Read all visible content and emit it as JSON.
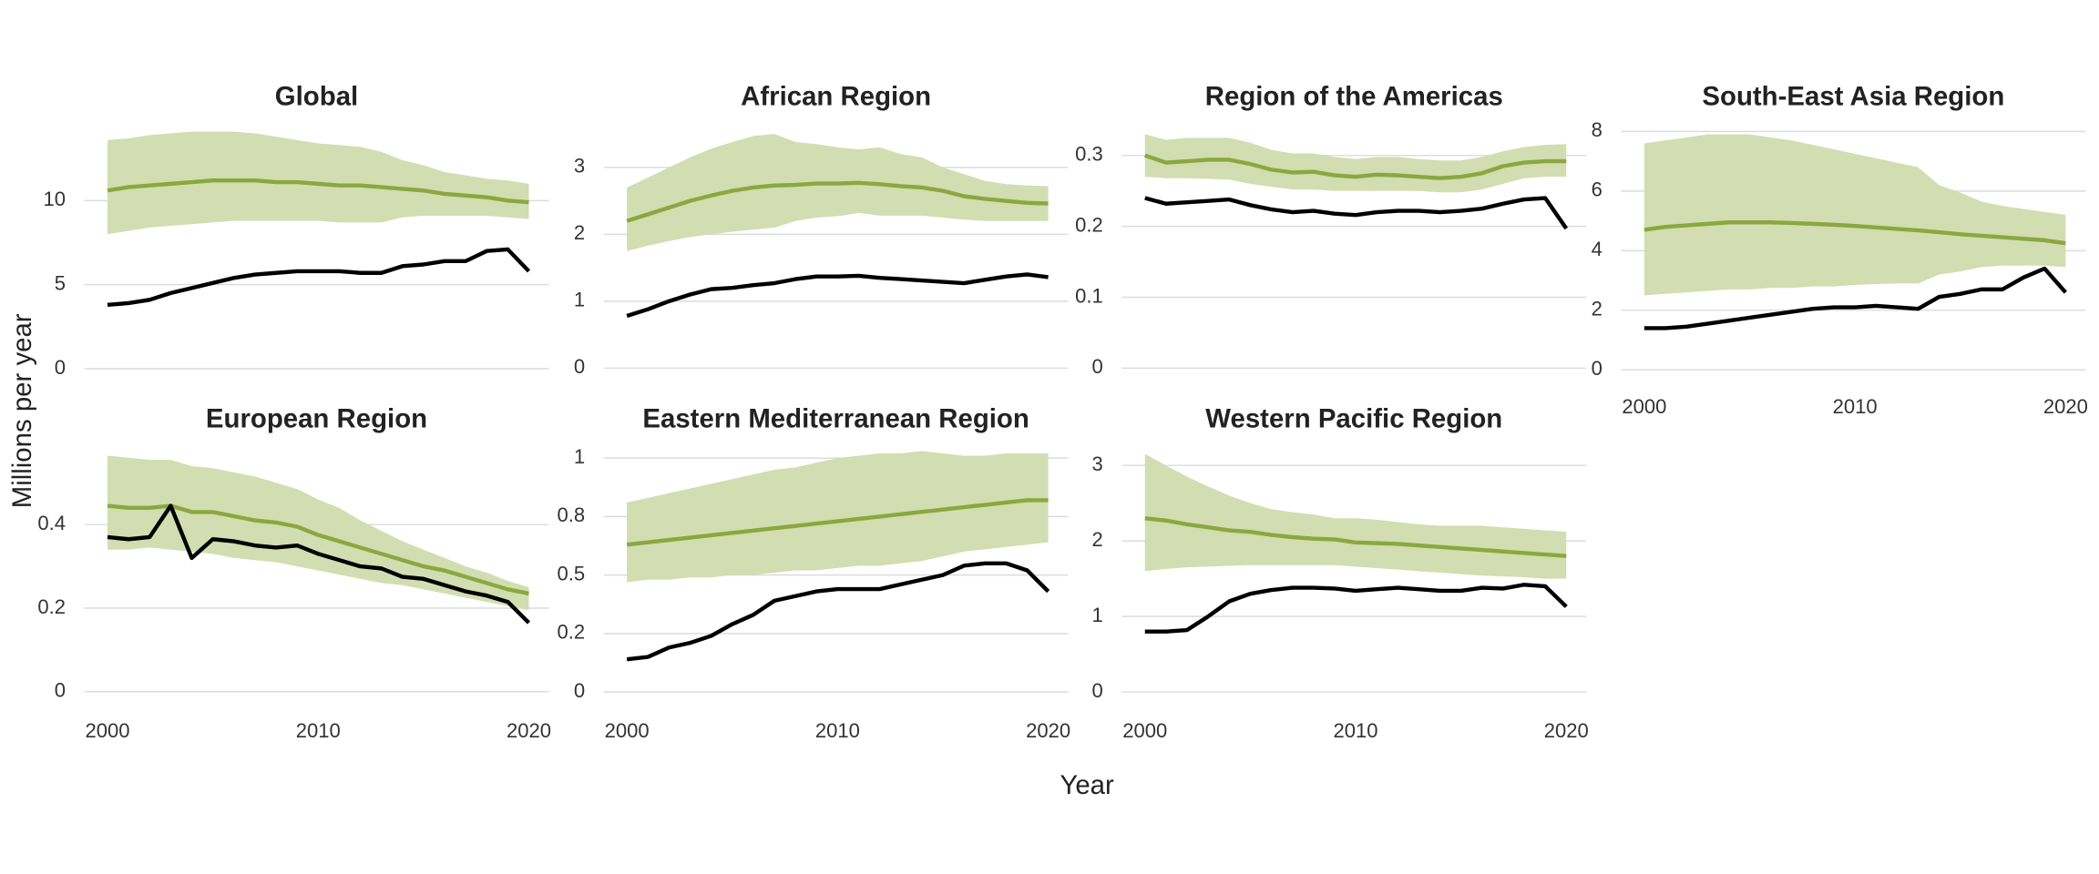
{
  "ylabel": "Millions per year",
  "xlabel": "Year",
  "chart_data": [
    {
      "type": "line",
      "title": "Global",
      "grid": true,
      "x": [
        2000,
        2001,
        2002,
        2003,
        2004,
        2005,
        2006,
        2007,
        2008,
        2009,
        2010,
        2011,
        2012,
        2013,
        2014,
        2015,
        2016,
        2017,
        2018,
        2019,
        2020
      ],
      "xlim": [
        1998.9,
        2020.95
      ],
      "ylim": [
        -0.6,
        14.2
      ],
      "yticks": [
        0,
        5,
        10
      ],
      "band": {
        "color": "#d2ddb1",
        "lower": [
          8.0,
          8.2,
          8.4,
          8.5,
          8.6,
          8.7,
          8.8,
          8.8,
          8.8,
          8.8,
          8.8,
          8.7,
          8.7,
          8.7,
          9.0,
          9.1,
          9.1,
          9.1,
          9.1,
          9.0,
          8.9
        ],
        "upper": [
          13.6,
          13.7,
          13.9,
          14.0,
          14.1,
          14.1,
          14.1,
          14.0,
          13.8,
          13.6,
          13.4,
          13.3,
          13.2,
          12.9,
          12.4,
          12.1,
          11.7,
          11.5,
          11.3,
          11.2,
          11.0
        ]
      },
      "series": [
        {
          "color": "#8aa83f",
          "values": [
            10.6,
            10.8,
            10.9,
            11.0,
            11.1,
            11.2,
            11.2,
            11.2,
            11.1,
            11.1,
            11.0,
            10.9,
            10.9,
            10.8,
            10.7,
            10.6,
            10.4,
            10.3,
            10.2,
            10.0,
            9.9
          ]
        },
        {
          "color": "#000000",
          "values": [
            3.8,
            3.9,
            4.1,
            4.5,
            4.8,
            5.1,
            5.4,
            5.6,
            5.7,
            5.8,
            5.8,
            5.8,
            5.7,
            5.7,
            6.1,
            6.2,
            6.4,
            6.4,
            7.0,
            7.1,
            5.8
          ]
        }
      ]
    },
    {
      "type": "line",
      "title": "African Region",
      "grid": true,
      "x": [
        2000,
        2001,
        2002,
        2003,
        2004,
        2005,
        2006,
        2007,
        2008,
        2009,
        2010,
        2011,
        2012,
        2013,
        2014,
        2015,
        2016,
        2017,
        2018,
        2019,
        2020
      ],
      "xlim": [
        1998.9,
        2020.95
      ],
      "ylim": [
        -0.16,
        3.56
      ],
      "yticks": [
        0,
        1,
        2,
        3
      ],
      "band": {
        "color": "#d2ddb1",
        "lower": [
          1.75,
          1.83,
          1.9,
          1.96,
          2.0,
          2.04,
          2.07,
          2.1,
          2.2,
          2.25,
          2.27,
          2.32,
          2.28,
          2.28,
          2.28,
          2.25,
          2.22,
          2.2,
          2.2,
          2.2,
          2.2
        ],
        "upper": [
          2.7,
          2.85,
          3.0,
          3.15,
          3.28,
          3.38,
          3.47,
          3.5,
          3.38,
          3.35,
          3.3,
          3.27,
          3.3,
          3.2,
          3.15,
          3.0,
          2.9,
          2.8,
          2.75,
          2.73,
          2.72
        ]
      },
      "series": [
        {
          "color": "#8aa83f",
          "values": [
            2.2,
            2.3,
            2.4,
            2.5,
            2.58,
            2.65,
            2.7,
            2.73,
            2.74,
            2.76,
            2.76,
            2.77,
            2.75,
            2.72,
            2.7,
            2.65,
            2.57,
            2.53,
            2.5,
            2.47,
            2.46
          ]
        },
        {
          "color": "#000000",
          "values": [
            0.78,
            0.88,
            1.0,
            1.1,
            1.18,
            1.2,
            1.24,
            1.27,
            1.33,
            1.37,
            1.37,
            1.38,
            1.35,
            1.33,
            1.31,
            1.29,
            1.27,
            1.32,
            1.37,
            1.4,
            1.36
          ]
        }
      ]
    },
    {
      "type": "line",
      "title": "Region of the Americas",
      "grid": true,
      "x": [
        2000,
        2001,
        2002,
        2003,
        2004,
        2005,
        2006,
        2007,
        2008,
        2009,
        2010,
        2011,
        2012,
        2013,
        2014,
        2015,
        2016,
        2017,
        2018,
        2019,
        2020
      ],
      "xlim": [
        1998.9,
        2020.95
      ],
      "ylim": [
        -0.015,
        0.336
      ],
      "yticks": [
        0,
        0.1,
        0.2,
        0.3
      ],
      "band": {
        "color": "#d2ddb1",
        "lower": [
          0.27,
          0.268,
          0.268,
          0.267,
          0.266,
          0.26,
          0.256,
          0.252,
          0.252,
          0.25,
          0.25,
          0.25,
          0.25,
          0.25,
          0.248,
          0.248,
          0.252,
          0.26,
          0.268,
          0.27,
          0.27
        ],
        "upper": [
          0.33,
          0.322,
          0.325,
          0.325,
          0.325,
          0.318,
          0.308,
          0.303,
          0.303,
          0.298,
          0.295,
          0.298,
          0.298,
          0.295,
          0.293,
          0.293,
          0.298,
          0.306,
          0.312,
          0.315,
          0.316
        ]
      },
      "series": [
        {
          "color": "#8aa83f",
          "values": [
            0.3,
            0.29,
            0.292,
            0.294,
            0.294,
            0.288,
            0.28,
            0.276,
            0.277,
            0.272,
            0.27,
            0.273,
            0.272,
            0.27,
            0.268,
            0.27,
            0.275,
            0.285,
            0.29,
            0.292,
            0.292
          ]
        },
        {
          "color": "#000000",
          "values": [
            0.24,
            0.232,
            0.234,
            0.236,
            0.238,
            0.23,
            0.224,
            0.22,
            0.222,
            0.218,
            0.216,
            0.22,
            0.222,
            0.222,
            0.22,
            0.222,
            0.225,
            0.232,
            0.238,
            0.24,
            0.197
          ]
        }
      ]
    },
    {
      "type": "line",
      "title": "South-East Asia Region",
      "grid": true,
      "x": [
        2000,
        2001,
        2002,
        2003,
        2004,
        2005,
        2006,
        2007,
        2008,
        2009,
        2010,
        2011,
        2012,
        2013,
        2014,
        2015,
        2016,
        2017,
        2018,
        2019,
        2020
      ],
      "xlim": [
        1998.9,
        2020.95
      ],
      "ylim": [
        -0.3,
        8.05
      ],
      "yticks": [
        0,
        2,
        4,
        6,
        8
      ],
      "xticks": [
        2000,
        2010,
        2020
      ],
      "band": {
        "color": "#d2ddb1",
        "lower": [
          2.5,
          2.55,
          2.6,
          2.65,
          2.7,
          2.7,
          2.75,
          2.75,
          2.8,
          2.8,
          2.85,
          2.88,
          2.9,
          2.9,
          3.2,
          3.3,
          3.45,
          3.5,
          3.5,
          3.5,
          3.45
        ],
        "upper": [
          7.6,
          7.7,
          7.8,
          7.9,
          7.9,
          7.9,
          7.8,
          7.7,
          7.55,
          7.4,
          7.25,
          7.1,
          6.95,
          6.8,
          6.2,
          5.95,
          5.65,
          5.5,
          5.4,
          5.3,
          5.2
        ]
      },
      "series": [
        {
          "color": "#8aa83f",
          "values": [
            4.7,
            4.8,
            4.85,
            4.9,
            4.95,
            4.95,
            4.95,
            4.93,
            4.9,
            4.87,
            4.83,
            4.78,
            4.73,
            4.68,
            4.62,
            4.55,
            4.5,
            4.45,
            4.4,
            4.35,
            4.25
          ]
        },
        {
          "color": "#000000",
          "values": [
            1.4,
            1.4,
            1.45,
            1.55,
            1.65,
            1.75,
            1.85,
            1.95,
            2.05,
            2.1,
            2.1,
            2.15,
            2.1,
            2.05,
            2.45,
            2.55,
            2.7,
            2.7,
            3.1,
            3.4,
            2.6
          ]
        }
      ]
    },
    {
      "type": "line",
      "title": "European Region",
      "grid": true,
      "x": [
        2000,
        2001,
        2002,
        2003,
        2004,
        2005,
        2006,
        2007,
        2008,
        2009,
        2010,
        2011,
        2012,
        2013,
        2014,
        2015,
        2016,
        2017,
        2018,
        2019,
        2020
      ],
      "xlim": [
        1998.9,
        2020.95
      ],
      "ylim": [
        -0.026,
        0.576
      ],
      "yticks": [
        0,
        0.2,
        0.4
      ],
      "xticks": [
        2000,
        2010,
        2020
      ],
      "band": {
        "color": "#d2ddb1",
        "lower": [
          0.34,
          0.34,
          0.345,
          0.34,
          0.335,
          0.33,
          0.32,
          0.315,
          0.31,
          0.3,
          0.29,
          0.28,
          0.27,
          0.26,
          0.255,
          0.245,
          0.235,
          0.225,
          0.215,
          0.205,
          0.195
        ],
        "upper": [
          0.565,
          0.56,
          0.555,
          0.555,
          0.54,
          0.535,
          0.525,
          0.515,
          0.5,
          0.485,
          0.46,
          0.44,
          0.41,
          0.385,
          0.36,
          0.34,
          0.32,
          0.3,
          0.285,
          0.265,
          0.25
        ]
      },
      "series": [
        {
          "color": "#8aa83f",
          "values": [
            0.445,
            0.44,
            0.44,
            0.445,
            0.43,
            0.43,
            0.42,
            0.41,
            0.405,
            0.395,
            0.375,
            0.36,
            0.345,
            0.33,
            0.315,
            0.3,
            0.29,
            0.275,
            0.26,
            0.245,
            0.235
          ]
        },
        {
          "color": "#000000",
          "values": [
            0.37,
            0.365,
            0.37,
            0.445,
            0.32,
            0.365,
            0.36,
            0.35,
            0.345,
            0.35,
            0.33,
            0.315,
            0.3,
            0.295,
            0.275,
            0.27,
            0.255,
            0.24,
            0.23,
            0.215,
            0.165
          ]
        }
      ]
    },
    {
      "type": "line",
      "title": "Eastern Mediterranean Region",
      "grid": true,
      "x": [
        2000,
        2001,
        2002,
        2003,
        2004,
        2005,
        2006,
        2007,
        2008,
        2009,
        2010,
        2011,
        2012,
        2013,
        2014,
        2015,
        2016,
        2017,
        2018,
        2019,
        2020
      ],
      "xlim": [
        1998.9,
        2020.95
      ],
      "ylim": [
        -0.045,
        1.03
      ],
      "yticks": [
        0,
        {
          "value": 0.25,
          "label": "0.2"
        },
        0.5,
        {
          "value": 0.75,
          "label": "0.8"
        },
        1
      ],
      "xticks": [
        2000,
        2010,
        2020
      ],
      "band": {
        "color": "#d2ddb1",
        "lower": [
          0.47,
          0.48,
          0.48,
          0.49,
          0.49,
          0.5,
          0.5,
          0.51,
          0.52,
          0.52,
          0.53,
          0.54,
          0.54,
          0.55,
          0.56,
          0.58,
          0.6,
          0.61,
          0.62,
          0.63,
          0.64
        ],
        "upper": [
          0.81,
          0.83,
          0.85,
          0.87,
          0.89,
          0.91,
          0.93,
          0.95,
          0.96,
          0.98,
          1.0,
          1.01,
          1.02,
          1.02,
          1.03,
          1.02,
          1.01,
          1.01,
          1.02,
          1.02,
          1.02
        ]
      },
      "series": [
        {
          "color": "#8aa83f",
          "values": [
            0.63,
            0.64,
            0.65,
            0.66,
            0.67,
            0.68,
            0.69,
            0.7,
            0.71,
            0.72,
            0.73,
            0.74,
            0.75,
            0.76,
            0.77,
            0.78,
            0.79,
            0.8,
            0.81,
            0.82,
            0.82
          ]
        },
        {
          "color": "#000000",
          "values": [
            0.14,
            0.15,
            0.19,
            0.21,
            0.24,
            0.29,
            0.33,
            0.39,
            0.41,
            0.43,
            0.44,
            0.44,
            0.44,
            0.46,
            0.48,
            0.5,
            0.54,
            0.55,
            0.55,
            0.52,
            0.43
          ]
        }
      ]
    },
    {
      "type": "line",
      "title": "Western Pacific Region",
      "grid": true,
      "x": [
        2000,
        2001,
        2002,
        2003,
        2004,
        2005,
        2006,
        2007,
        2008,
        2009,
        2010,
        2011,
        2012,
        2013,
        2014,
        2015,
        2016,
        2017,
        2018,
        2019,
        2020
      ],
      "xlim": [
        1998.9,
        2020.95
      ],
      "ylim": [
        -0.14,
        3.19
      ],
      "yticks": [
        0,
        1,
        2,
        3
      ],
      "xticks": [
        2000,
        2010,
        2020
      ],
      "band": {
        "color": "#d2ddb1",
        "lower": [
          1.6,
          1.63,
          1.65,
          1.66,
          1.67,
          1.68,
          1.68,
          1.68,
          1.68,
          1.68,
          1.66,
          1.64,
          1.62,
          1.6,
          1.58,
          1.56,
          1.54,
          1.53,
          1.52,
          1.5,
          1.5
        ],
        "upper": [
          3.15,
          3.0,
          2.85,
          2.72,
          2.6,
          2.5,
          2.42,
          2.38,
          2.35,
          2.3,
          2.3,
          2.28,
          2.25,
          2.22,
          2.2,
          2.2,
          2.2,
          2.18,
          2.16,
          2.14,
          2.12
        ]
      },
      "series": [
        {
          "color": "#8aa83f",
          "values": [
            2.3,
            2.27,
            2.22,
            2.18,
            2.14,
            2.12,
            2.08,
            2.05,
            2.03,
            2.02,
            1.98,
            1.97,
            1.96,
            1.94,
            1.92,
            1.9,
            1.88,
            1.86,
            1.84,
            1.82,
            1.8
          ]
        },
        {
          "color": "#000000",
          "values": [
            0.8,
            0.8,
            0.82,
            1.0,
            1.2,
            1.3,
            1.35,
            1.38,
            1.38,
            1.37,
            1.34,
            1.36,
            1.38,
            1.36,
            1.34,
            1.34,
            1.38,
            1.37,
            1.42,
            1.4,
            1.13
          ]
        }
      ]
    }
  ]
}
